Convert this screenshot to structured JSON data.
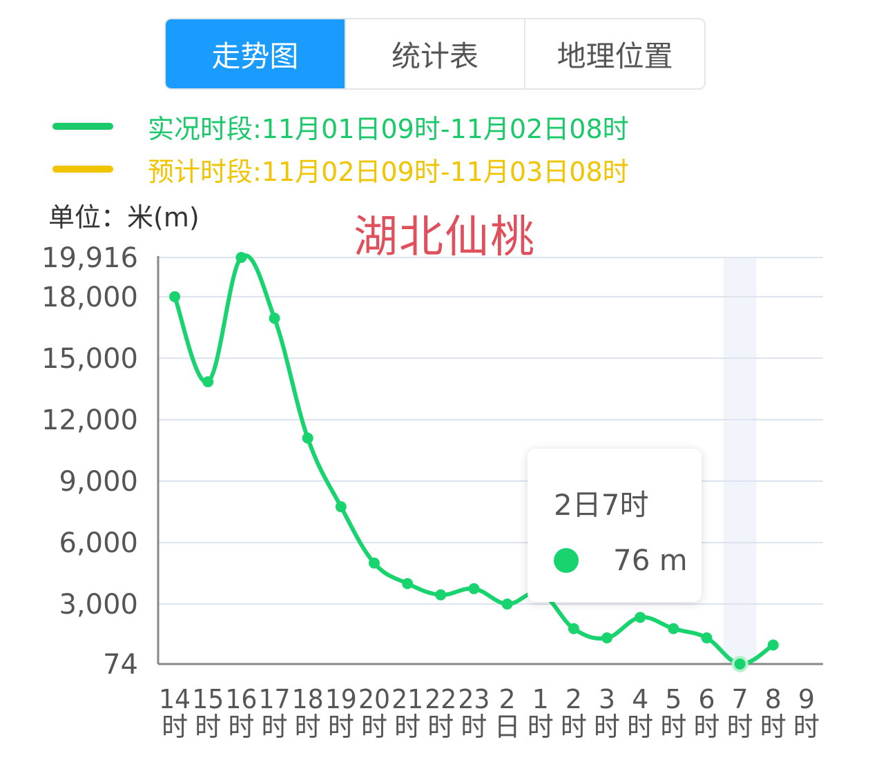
{
  "tabs": [
    {
      "label": "走势图",
      "active": true
    },
    {
      "label": "统计表",
      "active": false
    },
    {
      "label": "地理位置",
      "active": false
    }
  ],
  "legend": {
    "observed": {
      "label": "实况时段:11月01日09时-11月02日08时",
      "color": "#19c96a"
    },
    "forecast": {
      "label": "预计时段:11月02日09时-11月03日08时",
      "color": "#f0c400"
    }
  },
  "unit_label": "单位：米(m)",
  "place_label": "湖北仙桃",
  "tooltip": {
    "title": "2日7时",
    "value": "76 m"
  },
  "chart_data": {
    "type": "line",
    "ylim": [
      74,
      19916
    ],
    "y_ticks": [
      74,
      3000,
      6000,
      9000,
      12000,
      15000,
      18000,
      19916
    ],
    "y_tick_labels": [
      "74",
      "3,000",
      "6,000",
      "9,000",
      "12,000",
      "15,000",
      "18,000",
      "19,916"
    ],
    "x_tick_labels": [
      [
        "14",
        "时"
      ],
      [
        "15",
        "时"
      ],
      [
        "16",
        "时"
      ],
      [
        "17",
        "时"
      ],
      [
        "18",
        "时"
      ],
      [
        "19",
        "时"
      ],
      [
        "20",
        "时"
      ],
      [
        "21",
        "时"
      ],
      [
        "22",
        "时"
      ],
      [
        "23",
        "时"
      ],
      [
        "2",
        "日"
      ],
      [
        "1",
        "时"
      ],
      [
        "2",
        "时"
      ],
      [
        "3",
        "时"
      ],
      [
        "4",
        "时"
      ],
      [
        "5",
        "时"
      ],
      [
        "6",
        "时"
      ],
      [
        "7",
        "时"
      ],
      [
        "8",
        "时"
      ],
      [
        "9",
        "时"
      ]
    ],
    "series": [
      {
        "color": "#19d36f",
        "values": [
          18000,
          13850,
          19916,
          16950,
          11100,
          7750,
          5000,
          4000,
          3450,
          3750,
          3000,
          3550,
          1800,
          1350,
          2350,
          1800,
          1350,
          76,
          1000
        ]
      }
    ],
    "highlight_index": 17,
    "grid": true
  }
}
